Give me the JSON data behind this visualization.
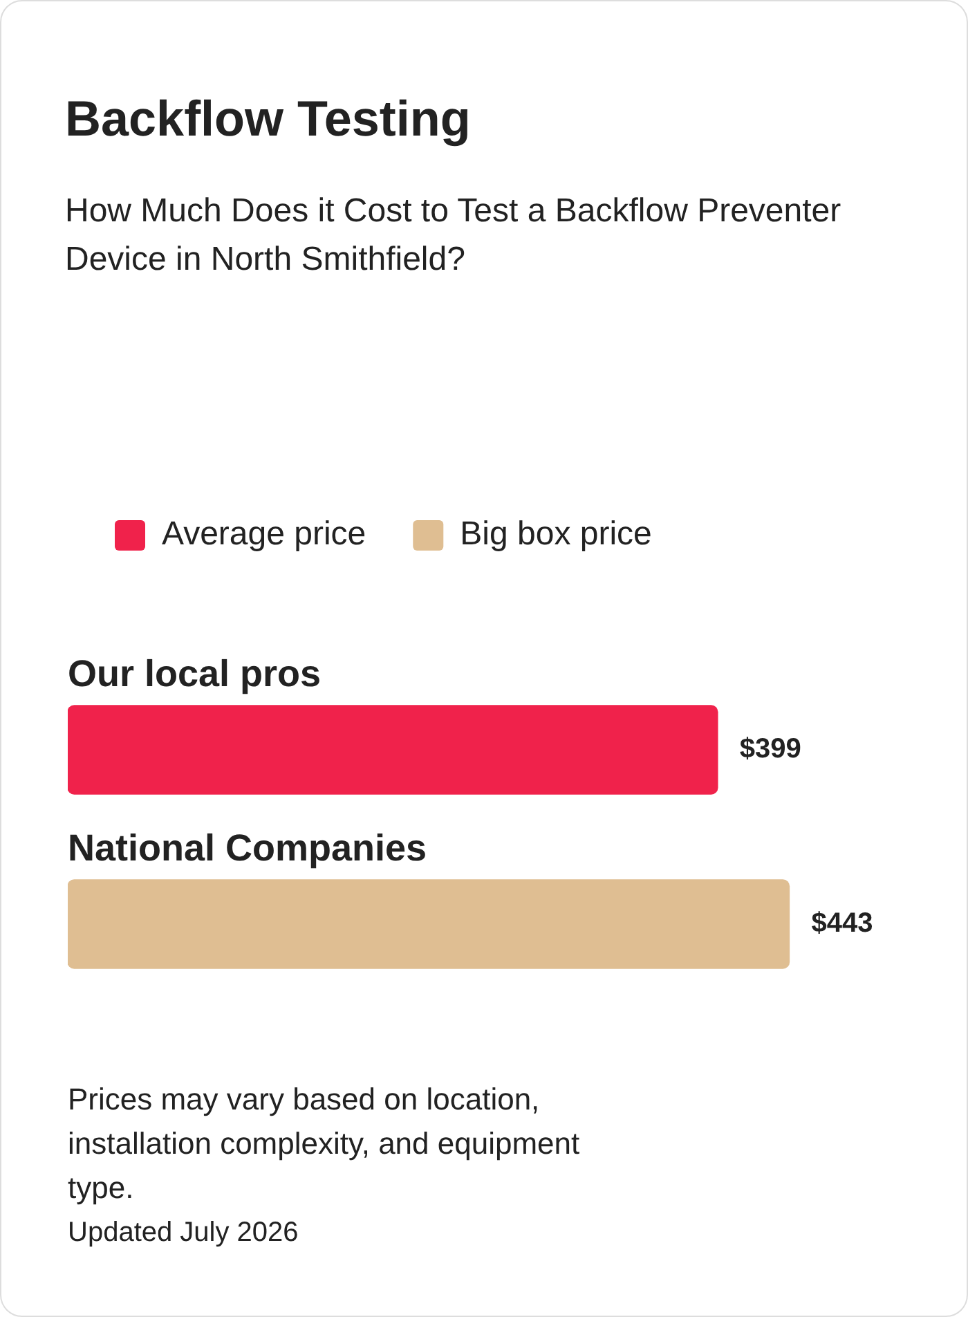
{
  "chart_data": {
    "type": "bar",
    "title": "Backflow Testing",
    "subtitle": "How Much Does it Cost to Test a Backflow Preventer Device in North Smithfield?",
    "orientation": "horizontal",
    "stacked": true,
    "categories": [
      "Our local pros",
      "National Companies"
    ],
    "series": [
      {
        "name": "Average price",
        "color": "#f0224b",
        "values": [
          399,
          null
        ],
        "value_labels": [
          "$399",
          null
        ]
      },
      {
        "name": "Big box price",
        "color": "#dfbe92",
        "values": [
          null,
          443
        ],
        "value_labels": [
          null,
          "$443"
        ]
      }
    ],
    "legend": "top left",
    "tick_labels": "y",
    "annotations": [
      "Prices may vary based on location, installation complexity, and equipment type.",
      "Updated July 2026"
    ]
  }
}
